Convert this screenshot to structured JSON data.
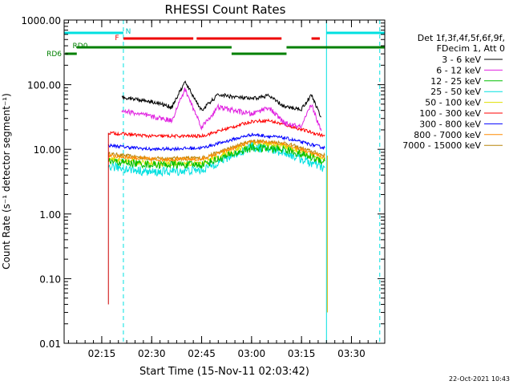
{
  "chart_data": {
    "type": "line",
    "title": "RHESSI Count Rates",
    "xlabel": "Start Time (15-Nov-11 02:03:42)",
    "ylabel": "Count Rate (s⁻¹ detector segment⁻¹)",
    "y_scale": "log",
    "ylim": [
      0.01,
      1000
    ],
    "xlim": [
      "02:03:42",
      "03:40:00"
    ],
    "x_ticks": [
      "02:15",
      "02:30",
      "02:45",
      "03:00",
      "03:15",
      "03:30"
    ],
    "y_ticks": [
      "1000.00",
      "100.00",
      "10.00",
      "1.00",
      "0.10",
      "0.01"
    ],
    "legend_header": [
      "Det 1f,3f,4f,5f,6f,9f,",
      "FDecim 1, Att 0"
    ],
    "legend_position": "right",
    "footer_date": "22-Oct-2021 10:43",
    "series": [
      {
        "name": "3 - 6 keV",
        "color": "#000000",
        "x": [
          "02:21",
          "02:30",
          "02:36",
          "02:40",
          "02:45",
          "02:50",
          "03:00",
          "03:05",
          "03:10",
          "03:15",
          "03:18",
          "03:21"
        ],
        "values": [
          65,
          55,
          45,
          110,
          40,
          70,
          60,
          68,
          45,
          42,
          70,
          30
        ]
      },
      {
        "name": "6 - 12 keV",
        "color": "#e020e0",
        "x": [
          "02:21",
          "02:30",
          "02:36",
          "02:40",
          "02:45",
          "02:50",
          "03:00",
          "03:05",
          "03:10",
          "03:15",
          "03:18",
          "03:21"
        ],
        "values": [
          40,
          32,
          28,
          85,
          22,
          45,
          35,
          45,
          25,
          22,
          50,
          18
        ]
      },
      {
        "name": "12 - 25 keV",
        "color": "#00c000",
        "x": [
          "02:17",
          "02:30",
          "02:45",
          "03:00",
          "03:10",
          "03:22"
        ],
        "values": [
          6.5,
          5.8,
          5.8,
          10.5,
          10.0,
          6.5
        ]
      },
      {
        "name": "25 - 50 keV",
        "color": "#00e0e0",
        "x": [
          "02:17",
          "02:30",
          "02:45",
          "03:00",
          "03:10",
          "03:22"
        ],
        "values": [
          5.5,
          4.4,
          4.8,
          11.0,
          9.0,
          5.0
        ]
      },
      {
        "name": "50 - 100 keV",
        "color": "#e0e000",
        "x": [
          "02:17",
          "02:30",
          "02:45",
          "03:00",
          "03:10",
          "03:22"
        ],
        "values": [
          7.0,
          6.0,
          6.0,
          12.0,
          11.0,
          6.5
        ]
      },
      {
        "name": "100 - 300 keV",
        "color": "#ff0000",
        "x": [
          "02:17",
          "02:30",
          "02:45",
          "03:00",
          "03:05",
          "03:10",
          "03:22"
        ],
        "values": [
          18,
          16,
          16,
          27,
          28,
          24,
          16
        ]
      },
      {
        "name": "300 - 800 keV",
        "color": "#0000ff",
        "x": [
          "02:17",
          "02:30",
          "02:45",
          "03:00",
          "03:10",
          "03:22"
        ],
        "values": [
          11.5,
          10.0,
          10.5,
          17,
          15,
          10.5
        ]
      },
      {
        "name": "800 - 7000 keV",
        "color": "#ff8c00",
        "x": [
          "02:17",
          "02:30",
          "02:45",
          "03:00",
          "03:10",
          "03:22"
        ],
        "values": [
          8.0,
          7.0,
          7.0,
          13.0,
          12.0,
          7.5
        ]
      },
      {
        "name": "7000 - 15000 keV",
        "color": "#b8860b",
        "x": [
          "02:17",
          "02:30",
          "02:45",
          "03:00",
          "03:10",
          "03:22"
        ],
        "values": [
          8.5,
          7.2,
          7.3,
          13.5,
          12.5,
          8.0
        ]
      }
    ],
    "vertical_lines": [
      "02:03:42",
      "02:21:30",
      "03:22:30",
      "03:38:30"
    ],
    "flag_bars": [
      {
        "label": "N",
        "color": "#00e0e0",
        "segments": [
          [
            "02:03:42",
            "02:21:30"
          ],
          [
            "03:22:30",
            "03:40:00"
          ]
        ]
      },
      {
        "label": "F",
        "color": "#ee0000",
        "segments": [
          [
            "02:21:30",
            "02:42:30"
          ],
          [
            "02:43:30",
            "03:09:00"
          ],
          [
            "03:18:00",
            "03:20:30"
          ]
        ]
      },
      {
        "label": "RD0",
        "color": "#008000",
        "segments": [
          [
            "02:07:30",
            "02:54:00"
          ],
          [
            "03:10:30",
            "03:40:00"
          ]
        ]
      },
      {
        "label": "RD6",
        "color": "#008000",
        "segments": [
          [
            "02:04:00",
            "02:07:30"
          ],
          [
            "02:54:00",
            "03:10:30"
          ]
        ]
      }
    ]
  }
}
